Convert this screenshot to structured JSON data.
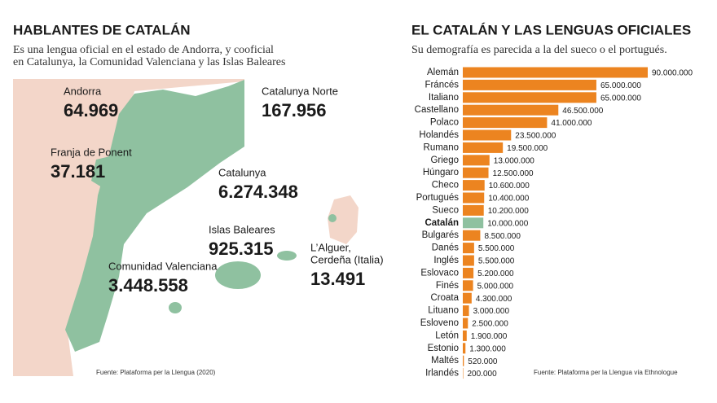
{
  "map": {
    "title": "HABLANTES DE CATALÁN",
    "subtitle": [
      "Es una lengua oficial en el estado de Andorra, y cooficial",
      "en Catalunya, la Comunidad Valenciana y las Islas Baleares"
    ],
    "regions": [
      {
        "name": [
          "Andorra"
        ],
        "number": "64.969"
      },
      {
        "name": [
          "Catalunya Norte"
        ],
        "number": "167.956"
      },
      {
        "name": [
          "Franja de Ponent"
        ],
        "number": "37.181"
      },
      {
        "name": [
          "Catalunya"
        ],
        "number": "6.274.348"
      },
      {
        "name": [
          "Islas Baleares"
        ],
        "number": "925.315"
      },
      {
        "name": [
          "L’Alguer,",
          "Cerdeña (Italia)"
        ],
        "number": "13.491"
      },
      {
        "name": [
          "Comunidad Valenciana"
        ],
        "number": "3.448.558"
      }
    ],
    "source": "Fuente: Plataforma per la Llengua (2020)"
  },
  "chart_data": {
    "type": "bar",
    "orientation": "horizontal",
    "title": "EL CATALÁN Y LAS LENGUAS OFICIALES",
    "subtitle": "Su demografía es parecida a la del sueco o el portugués.",
    "categories": [
      "Alemán",
      "Fráncés",
      "Italiano",
      "Castellano",
      "Polaco",
      "Holandés",
      "Rumano",
      "Griego",
      "Húngaro",
      "Checo",
      "Portugués",
      "Sueco",
      "Catalán",
      "Bulgarés",
      "Danés",
      "Inglés",
      "Eslovaco",
      "Finés",
      "Croata",
      "Lituano",
      "Esloveno",
      "Letón",
      "Estonio",
      "Maltés",
      "Irlandés"
    ],
    "values": [
      90000000,
      65000000,
      65000000,
      46500000,
      41000000,
      23500000,
      19500000,
      13000000,
      12500000,
      10600000,
      10400000,
      10200000,
      10000000,
      8500000,
      5500000,
      5500000,
      5200000,
      5000000,
      4300000,
      3000000,
      2500000,
      1900000,
      1300000,
      520000,
      200000
    ],
    "value_labels": [
      "90.000.000",
      "65.000.000",
      "65.000.000",
      "46.500.000",
      "41.000.000",
      "23.500.000",
      "19.500.000",
      "13.000.000",
      "12.500.000",
      "10.600.000",
      "10.400.000",
      "10.200.000",
      "10.000.000",
      "8.500.000",
      "5.500.000",
      "5.500.000",
      "5.200.000",
      "5.000.000",
      "4.300.000",
      "3.000.000",
      "2.500.000",
      "1.900.000",
      "1.300.000",
      "520.000",
      "200.000"
    ],
    "colors": [
      "#ec8420",
      "#ec8420",
      "#ec8420",
      "#ec8420",
      "#ec8420",
      "#ec8420",
      "#ec8420",
      "#ec8420",
      "#ec8420",
      "#ec8420",
      "#ec8420",
      "#ec8420",
      "#8fc1a0",
      "#ec8420",
      "#ec8420",
      "#ec8420",
      "#ec8420",
      "#ec8420",
      "#ec8420",
      "#ec8420",
      "#ec8420",
      "#ec8420",
      "#ec8420",
      "#ec8420",
      "#ec8420"
    ],
    "source": "Fuente: Plataforma per la Llengua vía Ethnologue"
  }
}
